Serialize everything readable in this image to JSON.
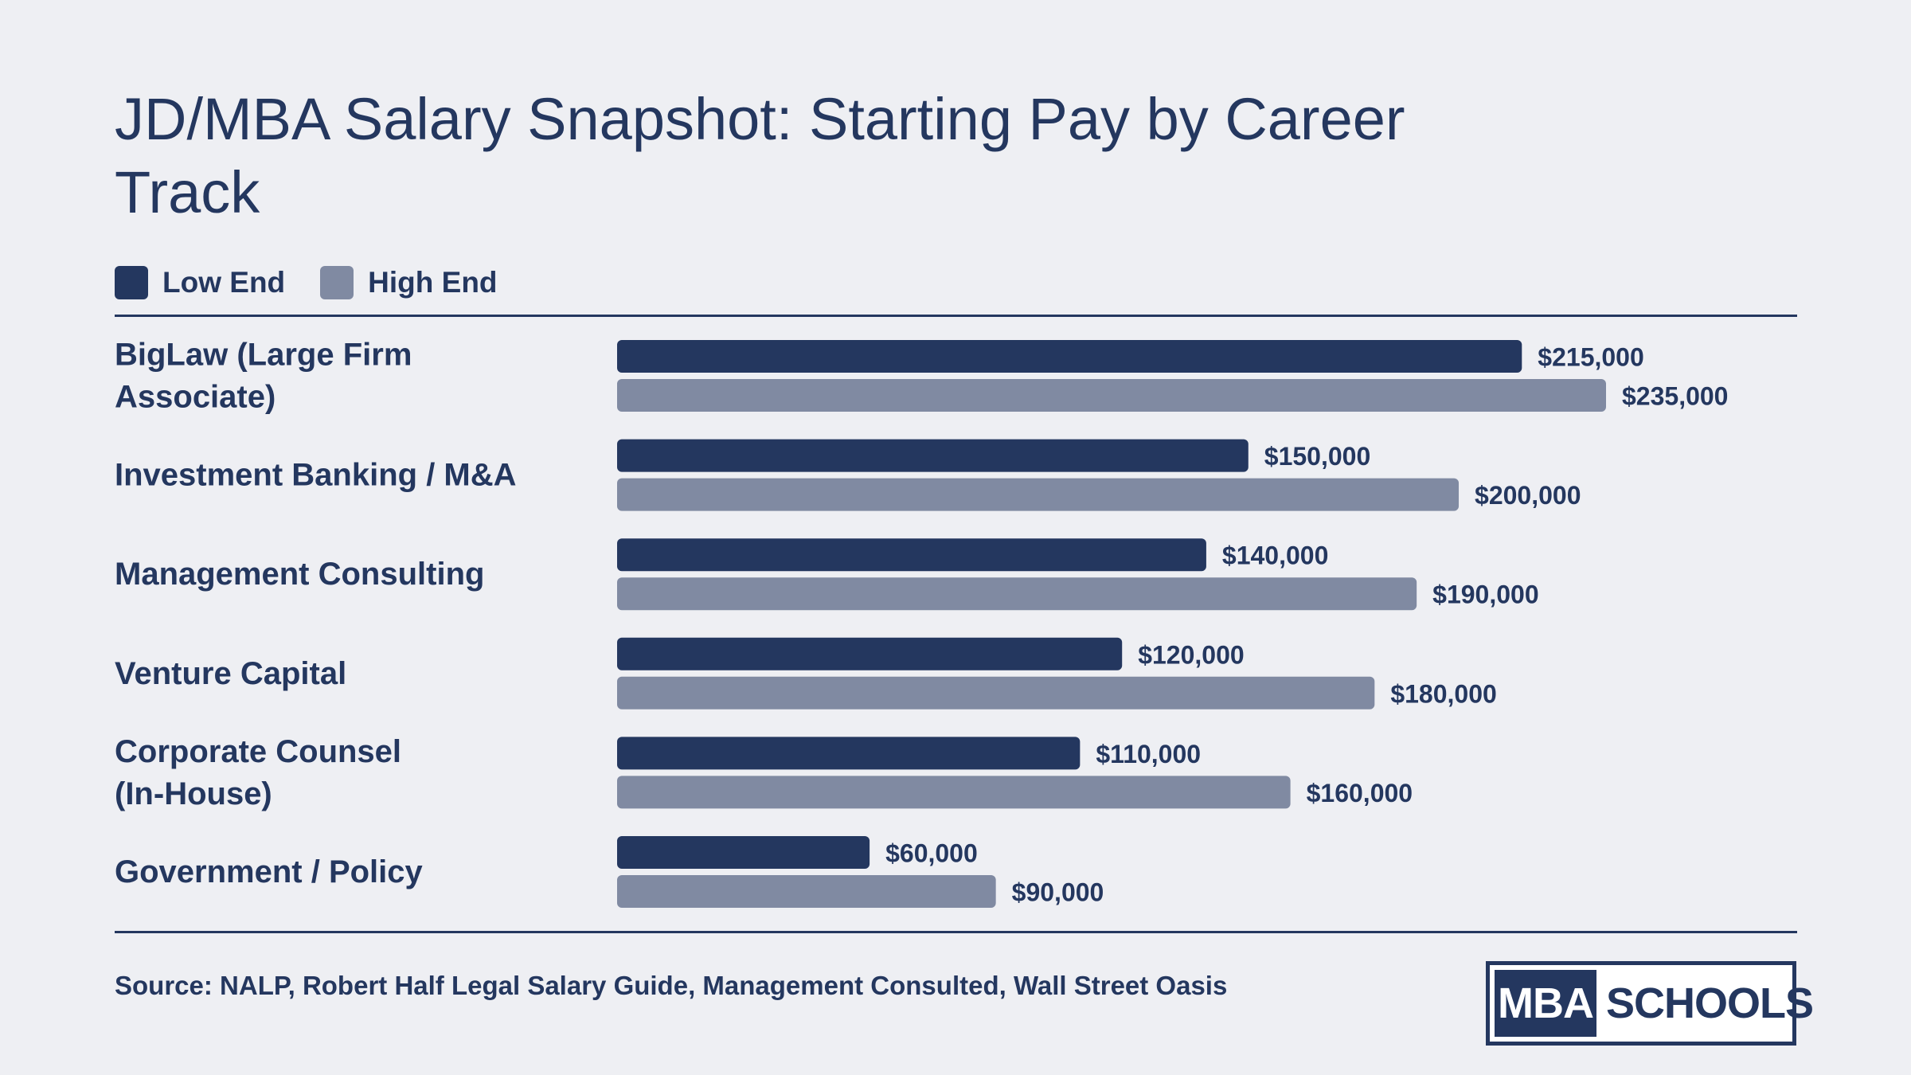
{
  "colors": {
    "background": "#eeeff3",
    "text": "#24375f",
    "low_end": "#24375f",
    "high_end": "#808aa2"
  },
  "legend": {
    "low_label": "Low End",
    "high_label": "High End"
  },
  "source": "Source: NALP, Robert Half Legal Salary Guide, Management Consulted, Wall Street Oasis",
  "logo": {
    "mba": "MBA",
    "schools": "SCHOOLS"
  },
  "chart_data": {
    "type": "bar",
    "orientation": "horizontal",
    "title": "JD/MBA Salary Snapshot: Starting Pay by Career Track",
    "categories": [
      [
        "BigLaw (Large Firm",
        "Associate)"
      ],
      [
        "Investment Banking / M&A"
      ],
      [
        "Management Consulting"
      ],
      [
        "Venture Capital"
      ],
      [
        "Corporate Counsel",
        "(In-House)"
      ],
      [
        "Government / Policy"
      ]
    ],
    "series": [
      {
        "name": "Low End",
        "color": "#24375f",
        "values": [
          215000,
          150000,
          140000,
          120000,
          110000,
          60000
        ],
        "labels": [
          "$215,000",
          "$150,000",
          "$140,000",
          "$120,000",
          "$110,000",
          "$60,000"
        ]
      },
      {
        "name": "High End",
        "color": "#808aa2",
        "values": [
          235000,
          200000,
          190000,
          180000,
          160000,
          90000
        ],
        "labels": [
          "$235,000",
          "$200,000",
          "$190,000",
          "$180,000",
          "$160,000",
          "$90,000"
        ]
      }
    ],
    "xlim": [
      0,
      235000
    ],
    "grid": false,
    "legend_position": "top-left"
  }
}
